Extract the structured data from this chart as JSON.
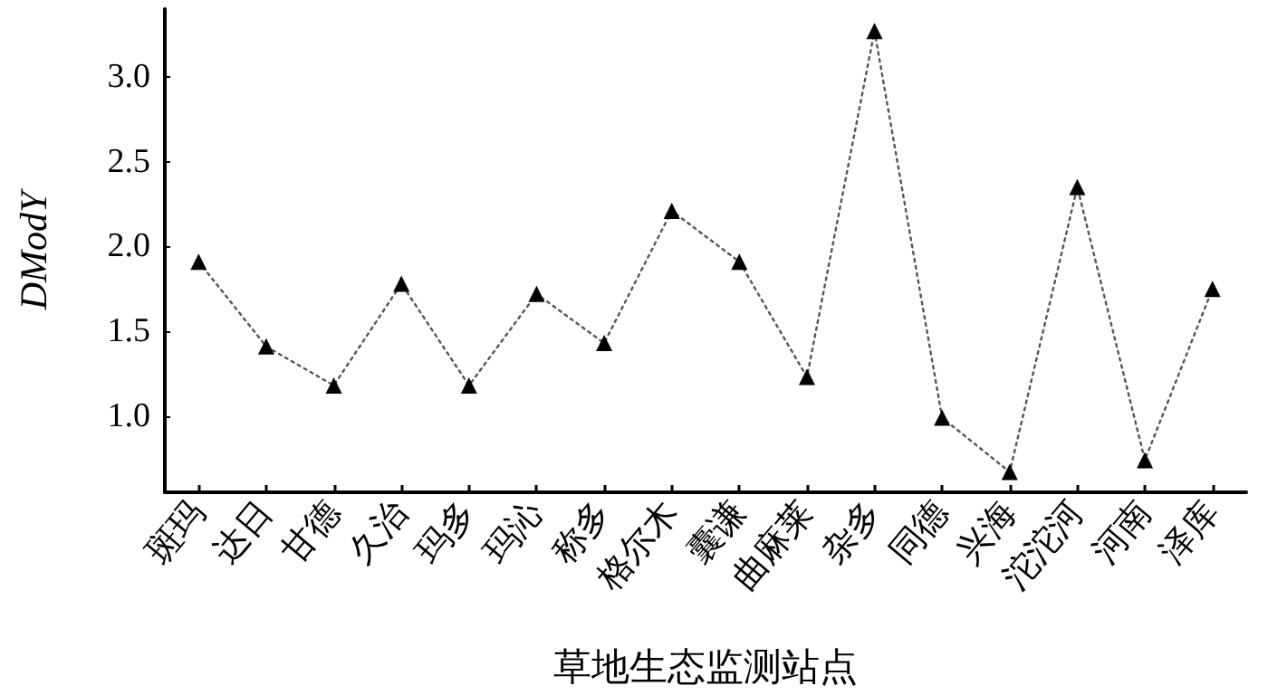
{
  "chart_data": {
    "type": "line",
    "xlabel": "草地生态监测站点",
    "ylabel": "DModY",
    "categories": [
      "斑玛",
      "达日",
      "甘德",
      "久治",
      "玛多",
      "玛沁",
      "称多",
      "格尔木",
      "囊谦",
      "曲麻莱",
      "杂多",
      "同德",
      "兴海",
      "沱沱河",
      "河南",
      "泽库"
    ],
    "series": [
      {
        "color": "#000000",
        "values": [
          1.91,
          1.41,
          1.18,
          1.78,
          1.18,
          1.72,
          1.43,
          2.21,
          1.91,
          1.23,
          3.27,
          0.99,
          0.67,
          2.35,
          0.74,
          1.75
        ]
      }
    ],
    "ylim": [
      0.55,
      3.4
    ],
    "yticks": [
      {
        "value": 1.0,
        "label": "1.0"
      },
      {
        "value": 1.5,
        "label": "1.5"
      },
      {
        "value": 2.0,
        "label": "2.0"
      },
      {
        "value": 2.5,
        "label": "2.5"
      },
      {
        "value": 3.0,
        "label": "3.0"
      }
    ],
    "grid": false,
    "marker": "triangle",
    "line_style": "dotted"
  }
}
